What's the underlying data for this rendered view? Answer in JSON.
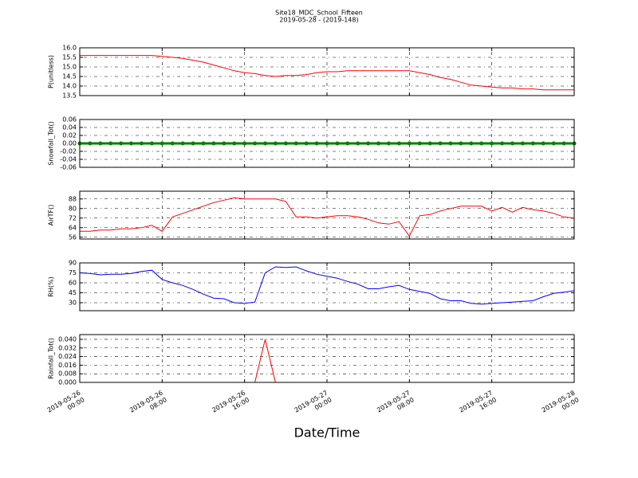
{
  "figure": {
    "title": "Site18_MDC_School_Fifteen",
    "subtitle": "2019-05-28 - (2019-148)",
    "xlabel": "Date/Time",
    "xlim": [
      "2019-05-26 00:00",
      "2019-05-28 00:00"
    ],
    "xticks": [
      "2019-05-26 00:00",
      "2019-05-26 08:00",
      "2019-05-26 16:00",
      "2019-05-27 00:00",
      "2019-05-27 08:00",
      "2019-05-27 16:00",
      "2019-05-28 00:00"
    ],
    "x": [
      "2019-05-26 00:00",
      "2019-05-26 01:00",
      "2019-05-26 02:00",
      "2019-05-26 03:00",
      "2019-05-26 04:00",
      "2019-05-26 05:00",
      "2019-05-26 06:00",
      "2019-05-26 07:00",
      "2019-05-26 08:00",
      "2019-05-26 09:00",
      "2019-05-26 10:00",
      "2019-05-26 11:00",
      "2019-05-26 12:00",
      "2019-05-26 13:00",
      "2019-05-26 14:00",
      "2019-05-26 15:00",
      "2019-05-26 16:00",
      "2019-05-26 17:00",
      "2019-05-26 18:00",
      "2019-05-26 19:00",
      "2019-05-26 20:00",
      "2019-05-26 21:00",
      "2019-05-26 22:00",
      "2019-05-26 23:00",
      "2019-05-27 00:00",
      "2019-05-27 01:00",
      "2019-05-27 02:00",
      "2019-05-27 03:00",
      "2019-05-27 04:00",
      "2019-05-27 05:00",
      "2019-05-27 06:00",
      "2019-05-27 07:00",
      "2019-05-27 08:00",
      "2019-05-27 09:00",
      "2019-05-27 10:00",
      "2019-05-27 11:00",
      "2019-05-27 12:00",
      "2019-05-27 13:00",
      "2019-05-27 14:00",
      "2019-05-27 15:00",
      "2019-05-27 16:00",
      "2019-05-27 17:00",
      "2019-05-27 18:00",
      "2019-05-27 19:00",
      "2019-05-27 20:00",
      "2019-05-27 21:00",
      "2019-05-27 22:00",
      "2019-05-27 23:00",
      "2019-05-28 00:00"
    ]
  },
  "chart_data": [
    {
      "type": "line",
      "ylabel": "P(unitless)",
      "color": "#ff0000",
      "grid": true,
      "ylim": [
        13.5,
        16.0
      ],
      "yticks": [
        13.5,
        {
          "value": 14,
          "label": "14.0"
        },
        14.5,
        {
          "value": 15,
          "label": "15.0"
        },
        15.5,
        {
          "value": 16,
          "label": "16.0"
        }
      ],
      "values": [
        15.6,
        15.6,
        15.6,
        15.6,
        15.6,
        15.6,
        15.6,
        15.6,
        15.55,
        15.5,
        15.45,
        15.35,
        15.25,
        15.1,
        14.95,
        14.8,
        14.7,
        14.65,
        14.55,
        14.5,
        14.55,
        14.55,
        14.6,
        14.7,
        14.75,
        14.75,
        14.8,
        14.8,
        14.8,
        14.8,
        14.8,
        14.8,
        14.8,
        14.7,
        14.6,
        14.45,
        14.35,
        14.2,
        14.05,
        14.0,
        13.95,
        13.9,
        13.9,
        13.85,
        13.85,
        13.8,
        13.8,
        13.8,
        13.8
      ]
    },
    {
      "type": "line",
      "ylabel": "Snowfall_Tot()",
      "color": "#008000",
      "markers": true,
      "grid": true,
      "ylim": [
        -0.06,
        0.06
      ],
      "yticks": [
        -0.06,
        -0.04,
        -0.02,
        {
          "value": 0,
          "label": "0.00"
        },
        0.02,
        0.04,
        0.06
      ],
      "values": [
        0,
        0,
        0,
        0,
        0,
        0,
        0,
        0,
        0,
        0,
        0,
        0,
        0,
        0,
        0,
        0,
        0,
        0,
        0,
        0,
        0,
        0,
        0,
        0,
        0,
        0,
        0,
        0,
        0,
        0,
        0,
        0,
        0,
        0,
        0,
        0,
        0,
        0,
        0,
        0,
        0,
        0,
        0,
        0,
        0,
        0,
        0,
        0,
        0
      ]
    },
    {
      "type": "line",
      "ylabel": "AirTF()",
      "color": "#ff0000",
      "grid": true,
      "ylim": [
        54.5,
        94.5
      ],
      "yticks": [
        56,
        64,
        72,
        80,
        88
      ],
      "values": [
        61,
        61,
        62,
        62,
        63,
        63,
        64,
        66,
        61,
        73,
        76,
        79,
        82,
        85,
        87,
        89,
        88,
        88,
        88,
        88,
        86,
        73,
        73,
        72,
        73,
        74,
        74,
        73,
        71,
        68,
        67,
        69,
        57,
        74,
        75,
        78,
        80,
        82,
        82,
        82,
        78,
        81,
        77,
        81,
        79,
        78,
        76,
        73,
        72
      ]
    },
    {
      "type": "line",
      "ylabel": "RH(%)",
      "color": "#0000ff",
      "grid": true,
      "ylim": [
        18,
        90
      ],
      "yticks": [
        30,
        45,
        60,
        75,
        90
      ],
      "values": [
        75,
        74,
        72,
        73,
        73,
        74,
        77,
        79,
        65,
        60,
        56,
        50,
        43,
        37,
        36,
        30,
        29,
        31,
        75,
        84,
        83,
        84,
        78,
        73,
        70,
        67,
        62,
        58,
        51,
        51,
        54,
        56,
        50,
        47,
        44,
        36,
        33,
        33,
        29,
        28,
        29,
        30,
        31,
        32,
        33,
        39,
        44,
        46,
        48
      ]
    },
    {
      "type": "line",
      "ylabel": "Rainfall_Tot()",
      "color": "#ff0000",
      "grid": true,
      "ylim": [
        0,
        0.0444
      ],
      "yticks": [
        {
          "value": 0,
          "label": "0.000"
        },
        0.008,
        0.016,
        0.024,
        0.032,
        {
          "value": 0.04,
          "label": "0.040"
        }
      ],
      "values": [
        0,
        0,
        0,
        0,
        0,
        0,
        0,
        0,
        0,
        0,
        0,
        0,
        0,
        0,
        0,
        0,
        0,
        0,
        0.04,
        0,
        0,
        0,
        0,
        0,
        0,
        0,
        0,
        0,
        0,
        0,
        0,
        0,
        0,
        0,
        0,
        0,
        0,
        0,
        0,
        0,
        0,
        0,
        0,
        0,
        0,
        0,
        0,
        0,
        0
      ]
    }
  ]
}
